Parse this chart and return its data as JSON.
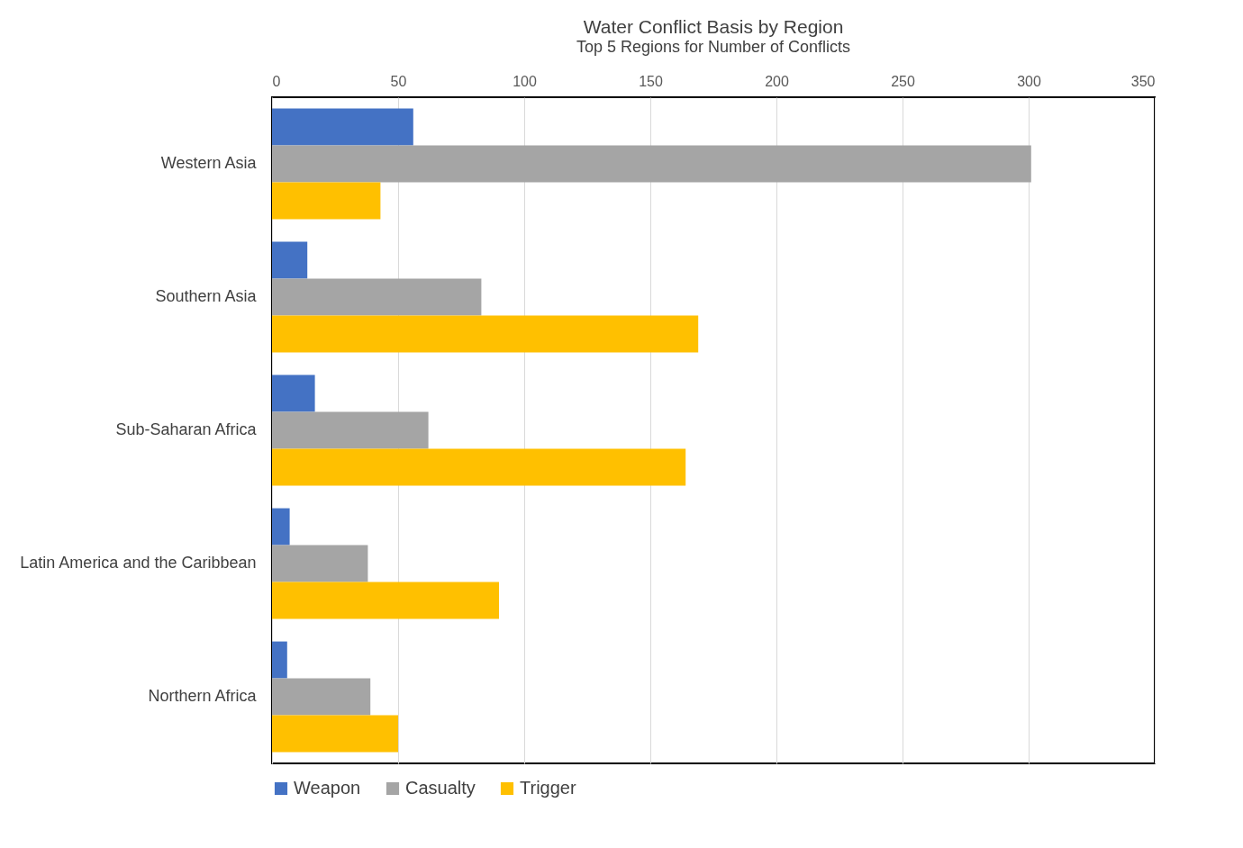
{
  "chart_data": {
    "type": "bar",
    "orientation": "horizontal",
    "title": "Water Conflict Basis by Region",
    "subtitle": "Top 5 Regions for Number of Conflicts",
    "categories": [
      "Western Asia",
      "Southern Asia",
      "Sub-Saharan Africa",
      "Latin America and the Caribbean",
      "Northern Africa"
    ],
    "series": [
      {
        "name": "Weapon",
        "color": "#4472c4",
        "values": [
          56,
          14,
          17,
          7,
          6
        ]
      },
      {
        "name": "Casualty",
        "color": "#a5a5a5",
        "values": [
          301,
          83,
          62,
          38,
          39
        ]
      },
      {
        "name": "Trigger",
        "color": "#ffc000",
        "values": [
          43,
          169,
          164,
          90,
          50
        ]
      }
    ],
    "xlim": [
      0,
      350
    ],
    "xticks": [
      0,
      50,
      100,
      150,
      200,
      250,
      300,
      350
    ],
    "grid": "x",
    "legend": "bottom"
  }
}
